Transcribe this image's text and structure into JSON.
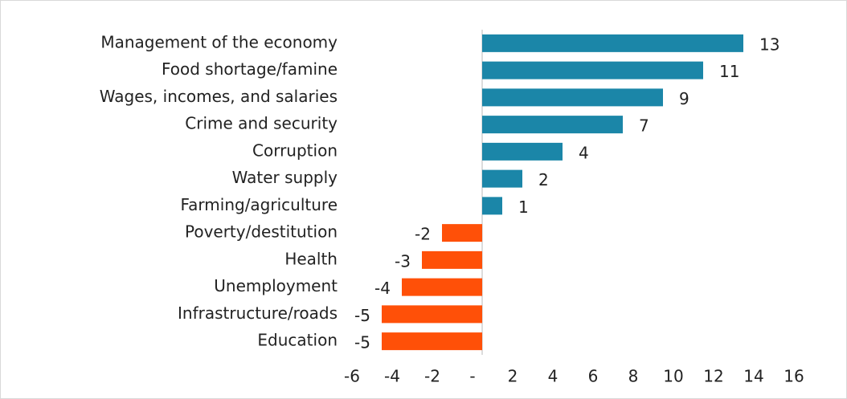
{
  "chart_data": {
    "type": "hbar",
    "categories": [
      "Management of the economy",
      "Food shortage/famine",
      "Wages, incomes, and salaries",
      "Crime and security",
      "Corruption",
      "Water supply",
      "Farming/agriculture",
      "Poverty/destitution",
      "Health",
      "Unemployment",
      "Infrastructure/roads",
      "Education"
    ],
    "values": [
      13,
      11,
      9,
      7,
      4,
      2,
      1,
      -2,
      -3,
      -4,
      -5,
      -5
    ],
    "positive_color": "#1b86a8",
    "negative_color": "#ff5008",
    "xlim": [
      -6,
      16
    ],
    "xticks": [
      -6,
      -4,
      -2,
      {
        "value": 0,
        "label": "-"
      },
      2,
      4,
      6,
      8,
      10,
      12,
      14,
      16
    ]
  }
}
